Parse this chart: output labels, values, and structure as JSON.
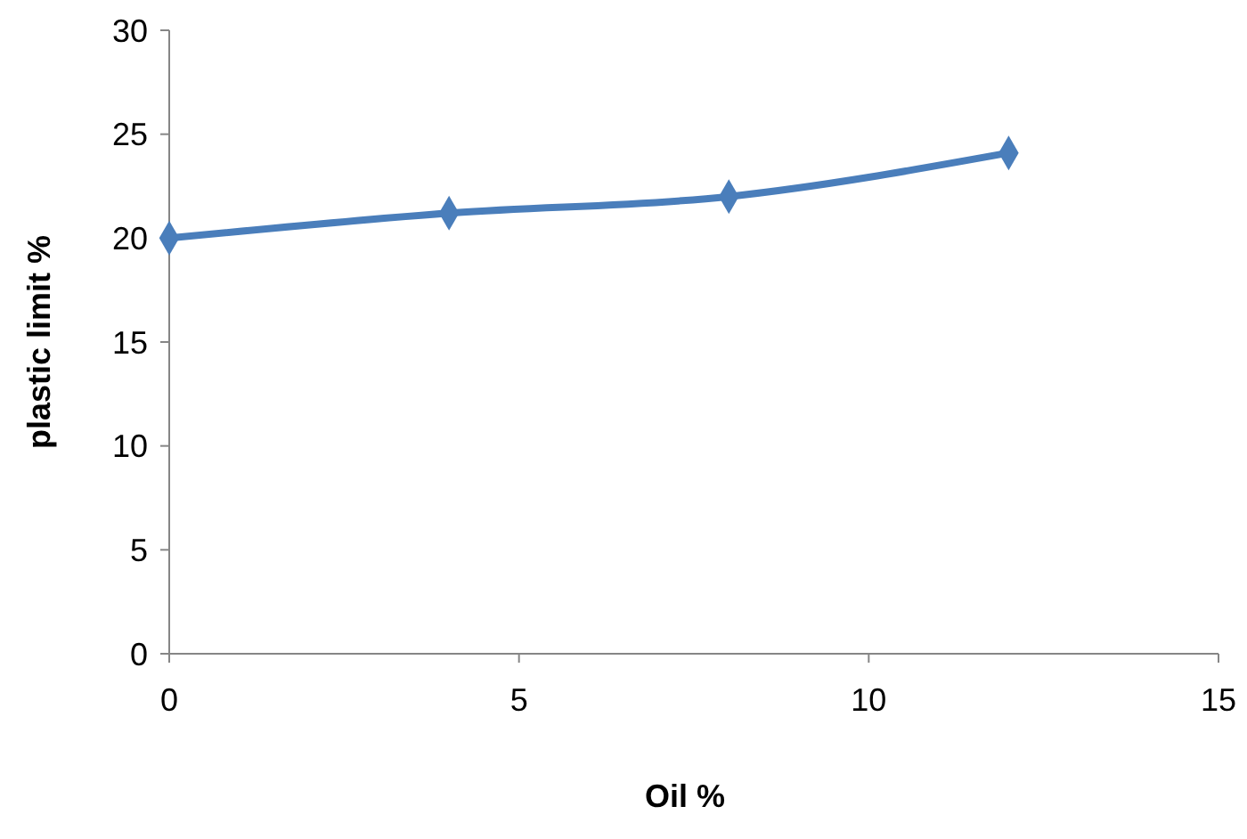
{
  "chart_data": {
    "type": "line",
    "xlabel": "Oil %",
    "ylabel": "plastic limit %",
    "x": [
      0,
      4,
      8,
      12
    ],
    "series": [
      {
        "color": "#4a7ebb",
        "values": [
          20,
          21.2,
          22,
          24.1
        ]
      }
    ],
    "xlim": [
      0,
      15
    ],
    "xticks": [
      0,
      5,
      10,
      15
    ],
    "ylim": [
      0,
      30
    ],
    "yticks": [
      0,
      5,
      10,
      15,
      20,
      25,
      30
    ],
    "marker": "diamond",
    "line_style": "solid",
    "grid": false
  }
}
